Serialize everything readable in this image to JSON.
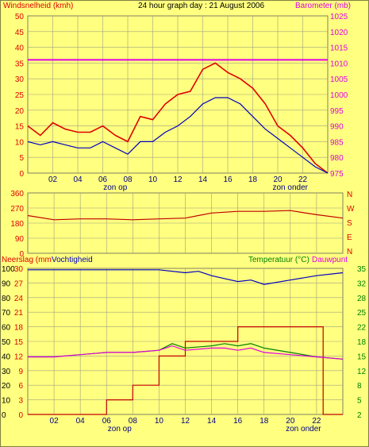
{
  "header": {
    "left_label": "Windsnelheid (kmh)",
    "title": "24 hour graph day : 21 August 2006",
    "right_label": "Barometer (mb)"
  },
  "panel2": {
    "dir_labels": [
      "N",
      "W",
      "S",
      "E",
      "N"
    ]
  },
  "panel3": {
    "left_label1": "Neerslag (mm",
    "left_label2": "Vochtigheid",
    "right_label1": "Temperatuur (°C)",
    "right_label2": "Dauwpunt"
  },
  "colors": {
    "background": "#ffff80",
    "plot": "#ffff80",
    "grid": "#a0a080",
    "wind_gust": "#e00000",
    "wind_avg": "#0000c0",
    "barometer": "#e000e0",
    "direction": "#c00000",
    "humidity": "#0000c0",
    "rain": "#c00000",
    "temperature": "#008000",
    "dewpoint": "#e000e0",
    "red_label": "#e00000",
    "magenta_label": "#e000e0",
    "blue_label": "#0000c0",
    "green_label": "#008000"
  },
  "chart_data": [
    {
      "type": "line",
      "title": "24 hour graph day : 21 August 2006",
      "xlabel": "",
      "x_tick_labels": [
        "02",
        "04",
        "06",
        "08",
        "10",
        "12",
        "14",
        "16",
        "18",
        "20",
        "22"
      ],
      "x_annotations": [
        {
          "hour": 7,
          "text": "zon op"
        },
        {
          "hour": 21,
          "text": "zon onder"
        }
      ],
      "ylabel": "Windsnelheid (kmh)",
      "ylim": [
        0,
        50
      ],
      "y_ticks": [
        "0",
        "5",
        "10",
        "15",
        "20",
        "25",
        "30",
        "35",
        "40",
        "45",
        "50"
      ],
      "y2label": "Barometer (mb)",
      "y2lim": [
        975,
        1025
      ],
      "y2_ticks": [
        "975",
        "980",
        "985",
        "990",
        "995",
        "1000",
        "1005",
        "1010",
        "1015",
        "1020",
        "1025"
      ],
      "grid": true,
      "series": [
        {
          "name": "Windsnelheid gust",
          "axis": "left",
          "x": [
            0,
            1,
            2,
            3,
            4,
            5,
            6,
            7,
            8,
            9,
            10,
            11,
            12,
            13,
            14,
            15,
            16,
            17,
            18,
            19,
            20,
            21,
            22,
            23,
            24
          ],
          "values": [
            15,
            12,
            16,
            14,
            13,
            13,
            15,
            12,
            10,
            18,
            17,
            22,
            25,
            26,
            33,
            35,
            32,
            30,
            27,
            22,
            15,
            12,
            8,
            3,
            0
          ]
        },
        {
          "name": "Windsnelheid gemiddeld",
          "axis": "left",
          "x": [
            0,
            1,
            2,
            3,
            4,
            5,
            6,
            7,
            8,
            9,
            10,
            11,
            12,
            13,
            14,
            15,
            16,
            17,
            18,
            19,
            20,
            21,
            22,
            23,
            24
          ],
          "values": [
            10,
            9,
            10,
            9,
            8,
            8,
            10,
            8,
            6,
            10,
            10,
            13,
            15,
            18,
            22,
            24,
            24,
            22,
            18,
            14,
            11,
            8,
            5,
            2,
            0
          ]
        },
        {
          "name": "Barometer",
          "axis": "right",
          "x": [
            0,
            4,
            8,
            12,
            16,
            20,
            24
          ],
          "values": [
            1011,
            1011,
            1011,
            1011,
            1011,
            1011,
            1011
          ]
        }
      ]
    },
    {
      "type": "line",
      "xlabel": "",
      "ylabel": "",
      "ylim": [
        0,
        360
      ],
      "y_ticks": [
        "0",
        "90",
        "180",
        "270",
        "360"
      ],
      "grid": true,
      "series": [
        {
          "name": "Windrichting",
          "x": [
            0,
            2,
            4,
            6,
            8,
            10,
            12,
            14,
            16,
            18,
            20,
            22,
            24
          ],
          "values": [
            225,
            200,
            205,
            205,
            200,
            205,
            210,
            240,
            250,
            250,
            255,
            230,
            210
          ]
        }
      ]
    },
    {
      "type": "line",
      "xlabel": "",
      "x_tick_labels": [
        "02",
        "04",
        "06",
        "08",
        "10",
        "12",
        "14",
        "16",
        "18",
        "20",
        "22"
      ],
      "x_annotations": [
        {
          "hour": 7,
          "text": "zon op"
        },
        {
          "hour": 21,
          "text": "zon onder"
        }
      ],
      "ylabel": "Neerslag (mm / Vochtigheid",
      "ylim": [
        0,
        100
      ],
      "y_ticks_humidity": [
        "0",
        "10",
        "20",
        "30",
        "40",
        "50",
        "60",
        "70",
        "80",
        "90",
        "100"
      ],
      "y_ticks_rain": [
        "0",
        "3",
        "6",
        "9",
        "12",
        "15",
        "18",
        "21",
        "24",
        "27",
        "30"
      ],
      "y2label": "Temperatuur (°C) / Dauwpunt",
      "y2lim": [
        2,
        35
      ],
      "y2_ticks": [
        "2",
        "5",
        "8",
        "12",
        "15",
        "18",
        "22",
        "25",
        "28",
        "32",
        "35"
      ],
      "grid": true,
      "series": [
        {
          "name": "Vochtigheid",
          "axis": "left",
          "x": [
            0,
            6,
            10,
            12,
            13,
            14,
            15,
            16,
            17,
            18,
            20,
            22,
            24
          ],
          "values": [
            99,
            99,
            99,
            97,
            98,
            95,
            93,
            91,
            92,
            89,
            92,
            95,
            97
          ]
        },
        {
          "name": "Neerslag",
          "axis": "rain",
          "x": [
            0,
            6,
            6,
            8,
            8,
            10,
            10,
            12,
            12,
            16,
            16,
            22.5,
            22.5,
            24
          ],
          "values": [
            0,
            0,
            3,
            3,
            6,
            6,
            12,
            12,
            15,
            15,
            18,
            18,
            0,
            0
          ]
        },
        {
          "name": "Temperatuur",
          "axis": "right",
          "x": [
            0,
            2,
            4,
            6,
            8,
            10,
            11,
            12,
            14,
            15,
            16,
            17,
            18,
            20,
            22,
            24
          ],
          "values": [
            15,
            15,
            15.5,
            16,
            16,
            16.5,
            18,
            17,
            17.5,
            18,
            17.5,
            18,
            17,
            16,
            15,
            14.5
          ]
        },
        {
          "name": "Dauwpunt",
          "axis": "right",
          "x": [
            0,
            2,
            4,
            6,
            8,
            10,
            11,
            12,
            14,
            15,
            16,
            17,
            18,
            20,
            22,
            24
          ],
          "values": [
            15,
            15,
            15.5,
            16,
            16,
            16.5,
            17.5,
            16.5,
            17,
            17,
            16.5,
            17,
            16,
            15.5,
            15,
            14.5
          ]
        }
      ]
    }
  ]
}
